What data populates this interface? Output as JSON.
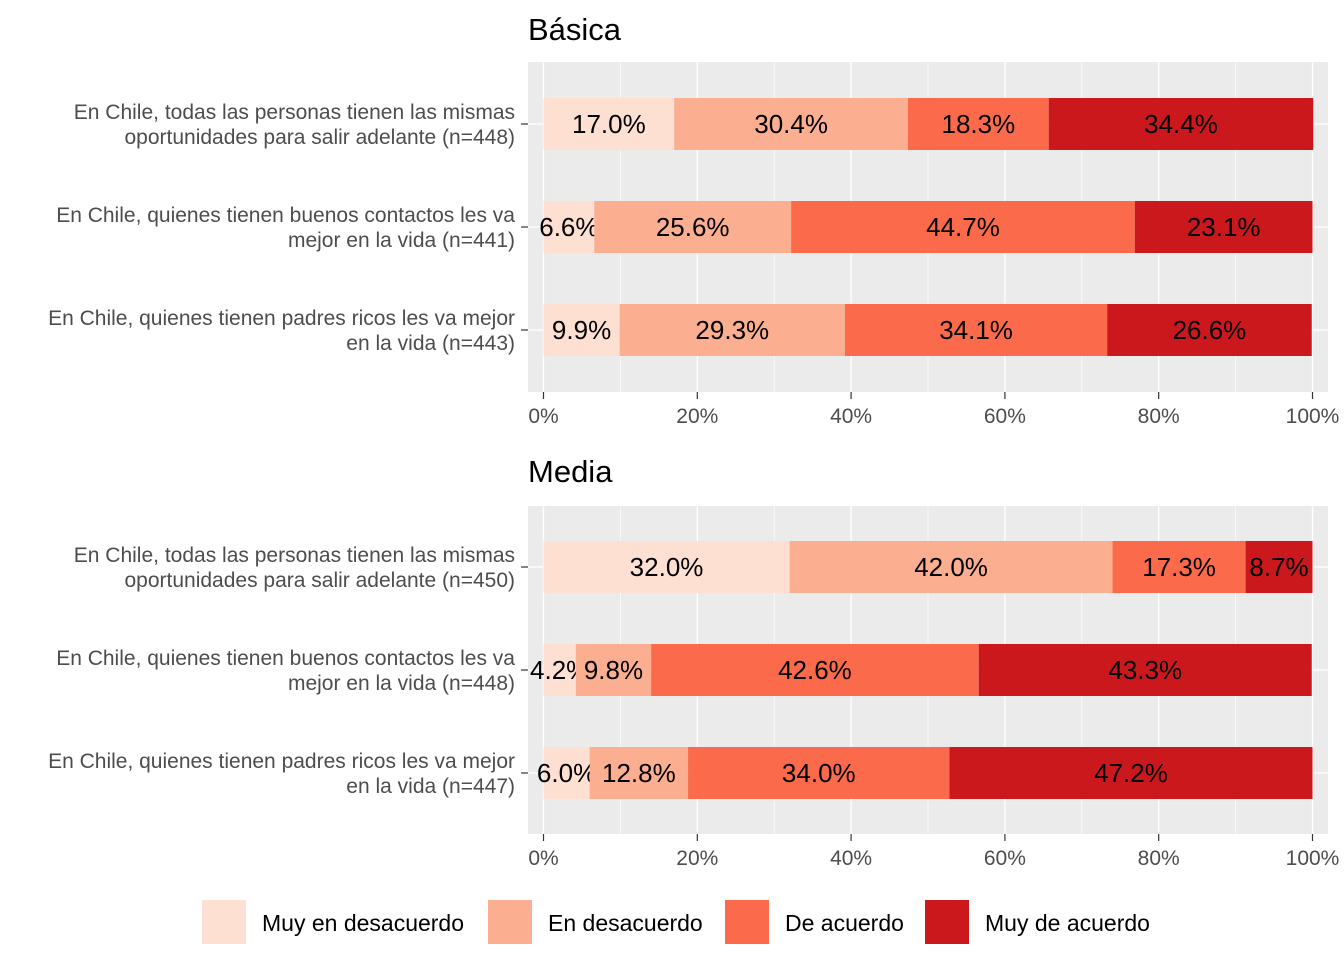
{
  "chart_data": [
    {
      "type": "bar",
      "orientation": "horizontal",
      "stacked": true,
      "title": "Básica",
      "categories": [
        [
          "En Chile, todas las personas tienen las mismas",
          "oportunidades para salir adelante (n=448)"
        ],
        [
          "En Chile, quienes tienen buenos contactos les va",
          "mejor en la vida (n=441)"
        ],
        [
          "En Chile, quienes tienen padres ricos les va mejor",
          "en la vida (n=443)"
        ]
      ],
      "series": [
        {
          "name": "Muy en desacuerdo",
          "values": [
            17.0,
            6.6,
            9.9
          ],
          "labels": [
            "17.0%",
            "6.6%",
            "9.9%"
          ]
        },
        {
          "name": "En desacuerdo",
          "values": [
            30.4,
            25.6,
            29.3
          ],
          "labels": [
            "30.4%",
            "25.6%",
            "29.3%"
          ]
        },
        {
          "name": "De acuerdo",
          "values": [
            18.3,
            44.7,
            34.1
          ],
          "labels": [
            "18.3%",
            "44.7%",
            "34.1%"
          ]
        },
        {
          "name": "Muy de acuerdo",
          "values": [
            34.4,
            23.1,
            26.6
          ],
          "labels": [
            "34.4%",
            "23.1%",
            "26.6%"
          ]
        }
      ],
      "xlim": [
        0,
        100
      ],
      "xticks": [
        "0%",
        "20%",
        "40%",
        "60%",
        "80%",
        "100%"
      ],
      "grid": true
    },
    {
      "type": "bar",
      "orientation": "horizontal",
      "stacked": true,
      "title": "Media",
      "categories": [
        [
          "En Chile, todas las personas tienen las mismas",
          "oportunidades para salir adelante (n=450)"
        ],
        [
          "En Chile, quienes tienen buenos contactos les va",
          "mejor en la vida (n=448)"
        ],
        [
          "En Chile, quienes tienen padres ricos les va mejor",
          "en la vida (n=447)"
        ]
      ],
      "series": [
        {
          "name": "Muy en desacuerdo",
          "values": [
            32.0,
            4.2,
            6.0
          ],
          "labels": [
            "32.0%",
            "4.2%",
            "6.0%"
          ]
        },
        {
          "name": "En desacuerdo",
          "values": [
            42.0,
            9.8,
            12.8
          ],
          "labels": [
            "42.0%",
            "9.8%",
            "12.8%"
          ]
        },
        {
          "name": "De acuerdo",
          "values": [
            17.3,
            42.6,
            34.0
          ],
          "labels": [
            "17.3%",
            "42.6%",
            "34.0%"
          ]
        },
        {
          "name": "Muy de acuerdo",
          "values": [
            8.7,
            43.3,
            47.2
          ],
          "labels": [
            "8.7%",
            "43.3%",
            "47.2%"
          ]
        }
      ],
      "xlim": [
        0,
        100
      ],
      "xticks": [
        "0%",
        "20%",
        "40%",
        "60%",
        "80%",
        "100%"
      ],
      "grid": true
    }
  ],
  "legend": {
    "position": "bottom",
    "items": [
      {
        "label": "Muy en desacuerdo",
        "color": "#fee0d2"
      },
      {
        "label": "En desacuerdo",
        "color": "#fcae91"
      },
      {
        "label": "De acuerdo",
        "color": "#fb6a4a"
      },
      {
        "label": "Muy de acuerdo",
        "color": "#cb181d"
      }
    ]
  },
  "colors": {
    "panel_background": "#ebebeb",
    "grid_major": "#ffffff",
    "axis_text": "#4d4d4d"
  }
}
